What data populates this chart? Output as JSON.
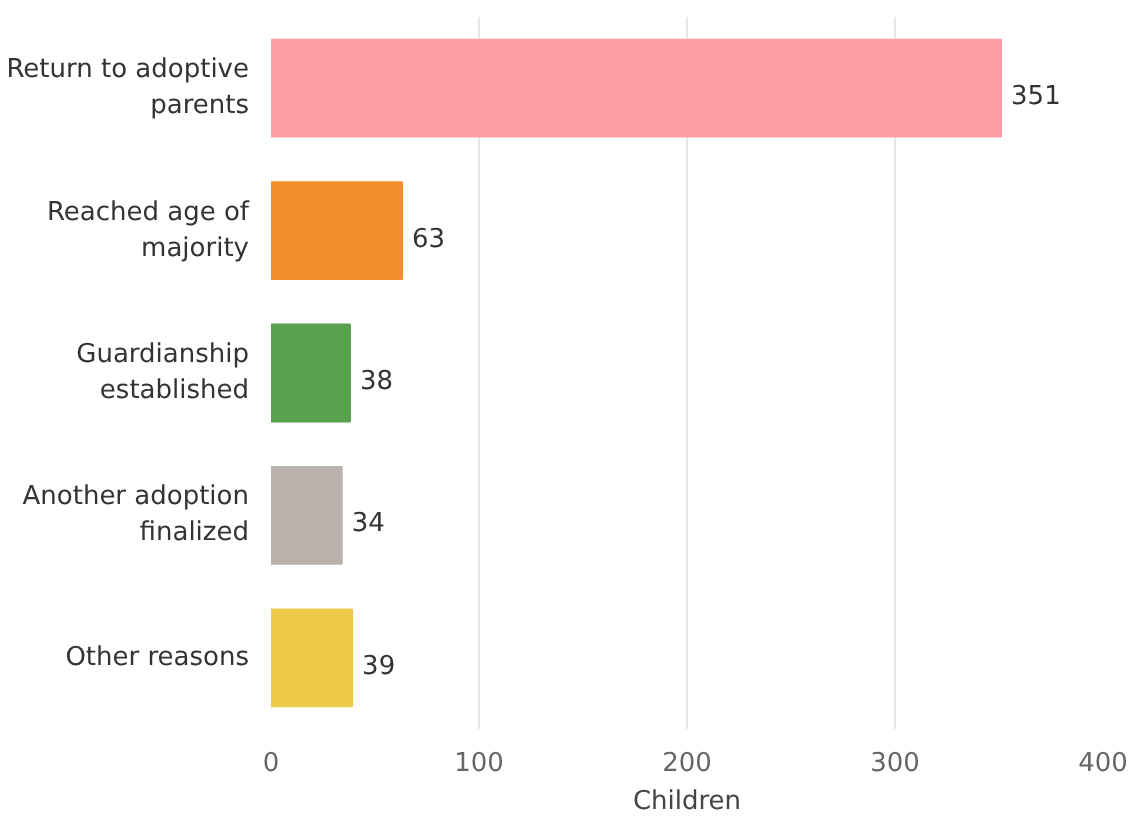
{
  "chart_data": {
    "type": "bar",
    "orientation": "horizontal",
    "xlabel": "Children",
    "categories": [
      "Return to adoptive parents",
      "Reached age of majority",
      "Guardianship established",
      "Another adoption finalized",
      "Other reasons"
    ],
    "values": [
      351,
      63,
      38,
      34,
      39
    ],
    "colors": [
      "#ff9da7",
      "#f28e2b",
      "#59a14f",
      "#bab0ac",
      "#edc948"
    ],
    "xlim": [
      0,
      400
    ],
    "xticks": [
      0,
      100,
      200,
      300,
      400
    ],
    "grid": "x",
    "data_labels": true
  }
}
